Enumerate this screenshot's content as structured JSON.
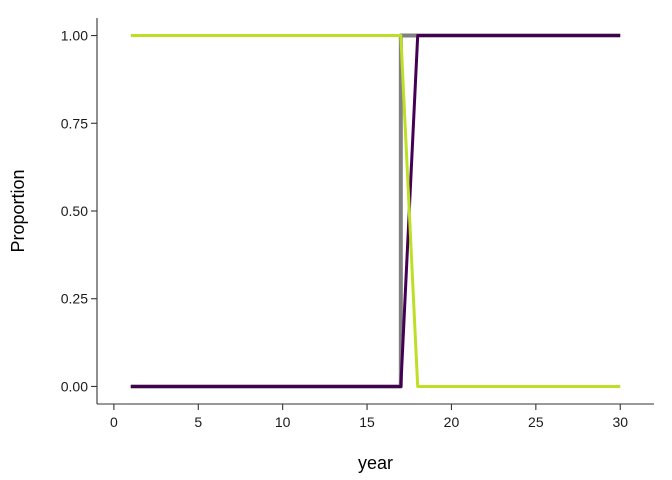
{
  "chart_data": {
    "type": "line",
    "xlabel": "year",
    "ylabel": "Proportion",
    "xlim": [
      -1,
      32
    ],
    "ylim": [
      -0.05,
      1.05
    ],
    "x_ticks": [
      0,
      5,
      10,
      15,
      20,
      25,
      30
    ],
    "x_tick_labels": [
      "0",
      "5",
      "10",
      "15",
      "20",
      "25",
      "30"
    ],
    "y_ticks": [
      0,
      0.25,
      0.5,
      0.75,
      1
    ],
    "y_tick_labels": [
      "0.00",
      "0.25",
      "0.50",
      "0.75",
      "1.00"
    ],
    "grid": false,
    "legend": "none",
    "series": [
      {
        "color": "#808080",
        "x": [
          1,
          17,
          17,
          30
        ],
        "y": [
          0,
          0,
          1,
          1
        ]
      },
      {
        "color": "#440154",
        "x": [
          1,
          17,
          18,
          30
        ],
        "y": [
          0,
          0,
          1,
          1
        ]
      },
      {
        "color": "#bddf26",
        "x": [
          1,
          17,
          18,
          30
        ],
        "y": [
          1,
          1,
          0,
          0
        ]
      }
    ]
  }
}
